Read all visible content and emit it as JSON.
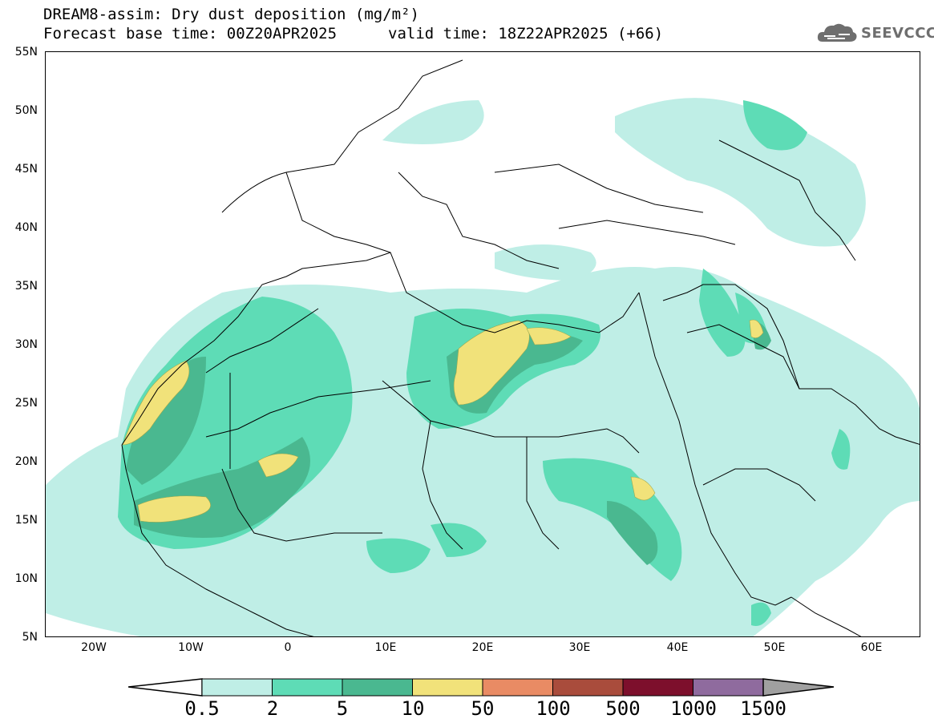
{
  "title": {
    "line1": "DREAM8-assim: Dry dust deposition (mg/m²)",
    "base_time": "Forecast base time: 00Z20APR2025",
    "valid_time": "valid time: 18Z22APR2025 (+66)"
  },
  "logo": {
    "text": "SEEVCCC",
    "icon": "cloud-icon"
  },
  "map": {
    "lon_range": [
      -25,
      65
    ],
    "lat_range": [
      5,
      55
    ],
    "lat_ticks": [
      "55N",
      "50N",
      "45N",
      "40N",
      "35N",
      "30N",
      "25N",
      "20N",
      "15N",
      "10N",
      "5N"
    ],
    "lon_ticks": [
      "20W",
      "10W",
      "0",
      "10E",
      "20E",
      "30E",
      "40E",
      "50E",
      "60E"
    ]
  },
  "colorbar": {
    "labels": [
      "0.5",
      "2",
      "5",
      "10",
      "50",
      "100",
      "500",
      "1000",
      "1500"
    ],
    "colors": [
      "#bfeee6",
      "#5edcb6",
      "#4ab890",
      "#f1e27a",
      "#e98b64",
      "#a94c3c",
      "#7d0f2c",
      "#8f6b9e",
      "#a0a0a0"
    ]
  }
}
